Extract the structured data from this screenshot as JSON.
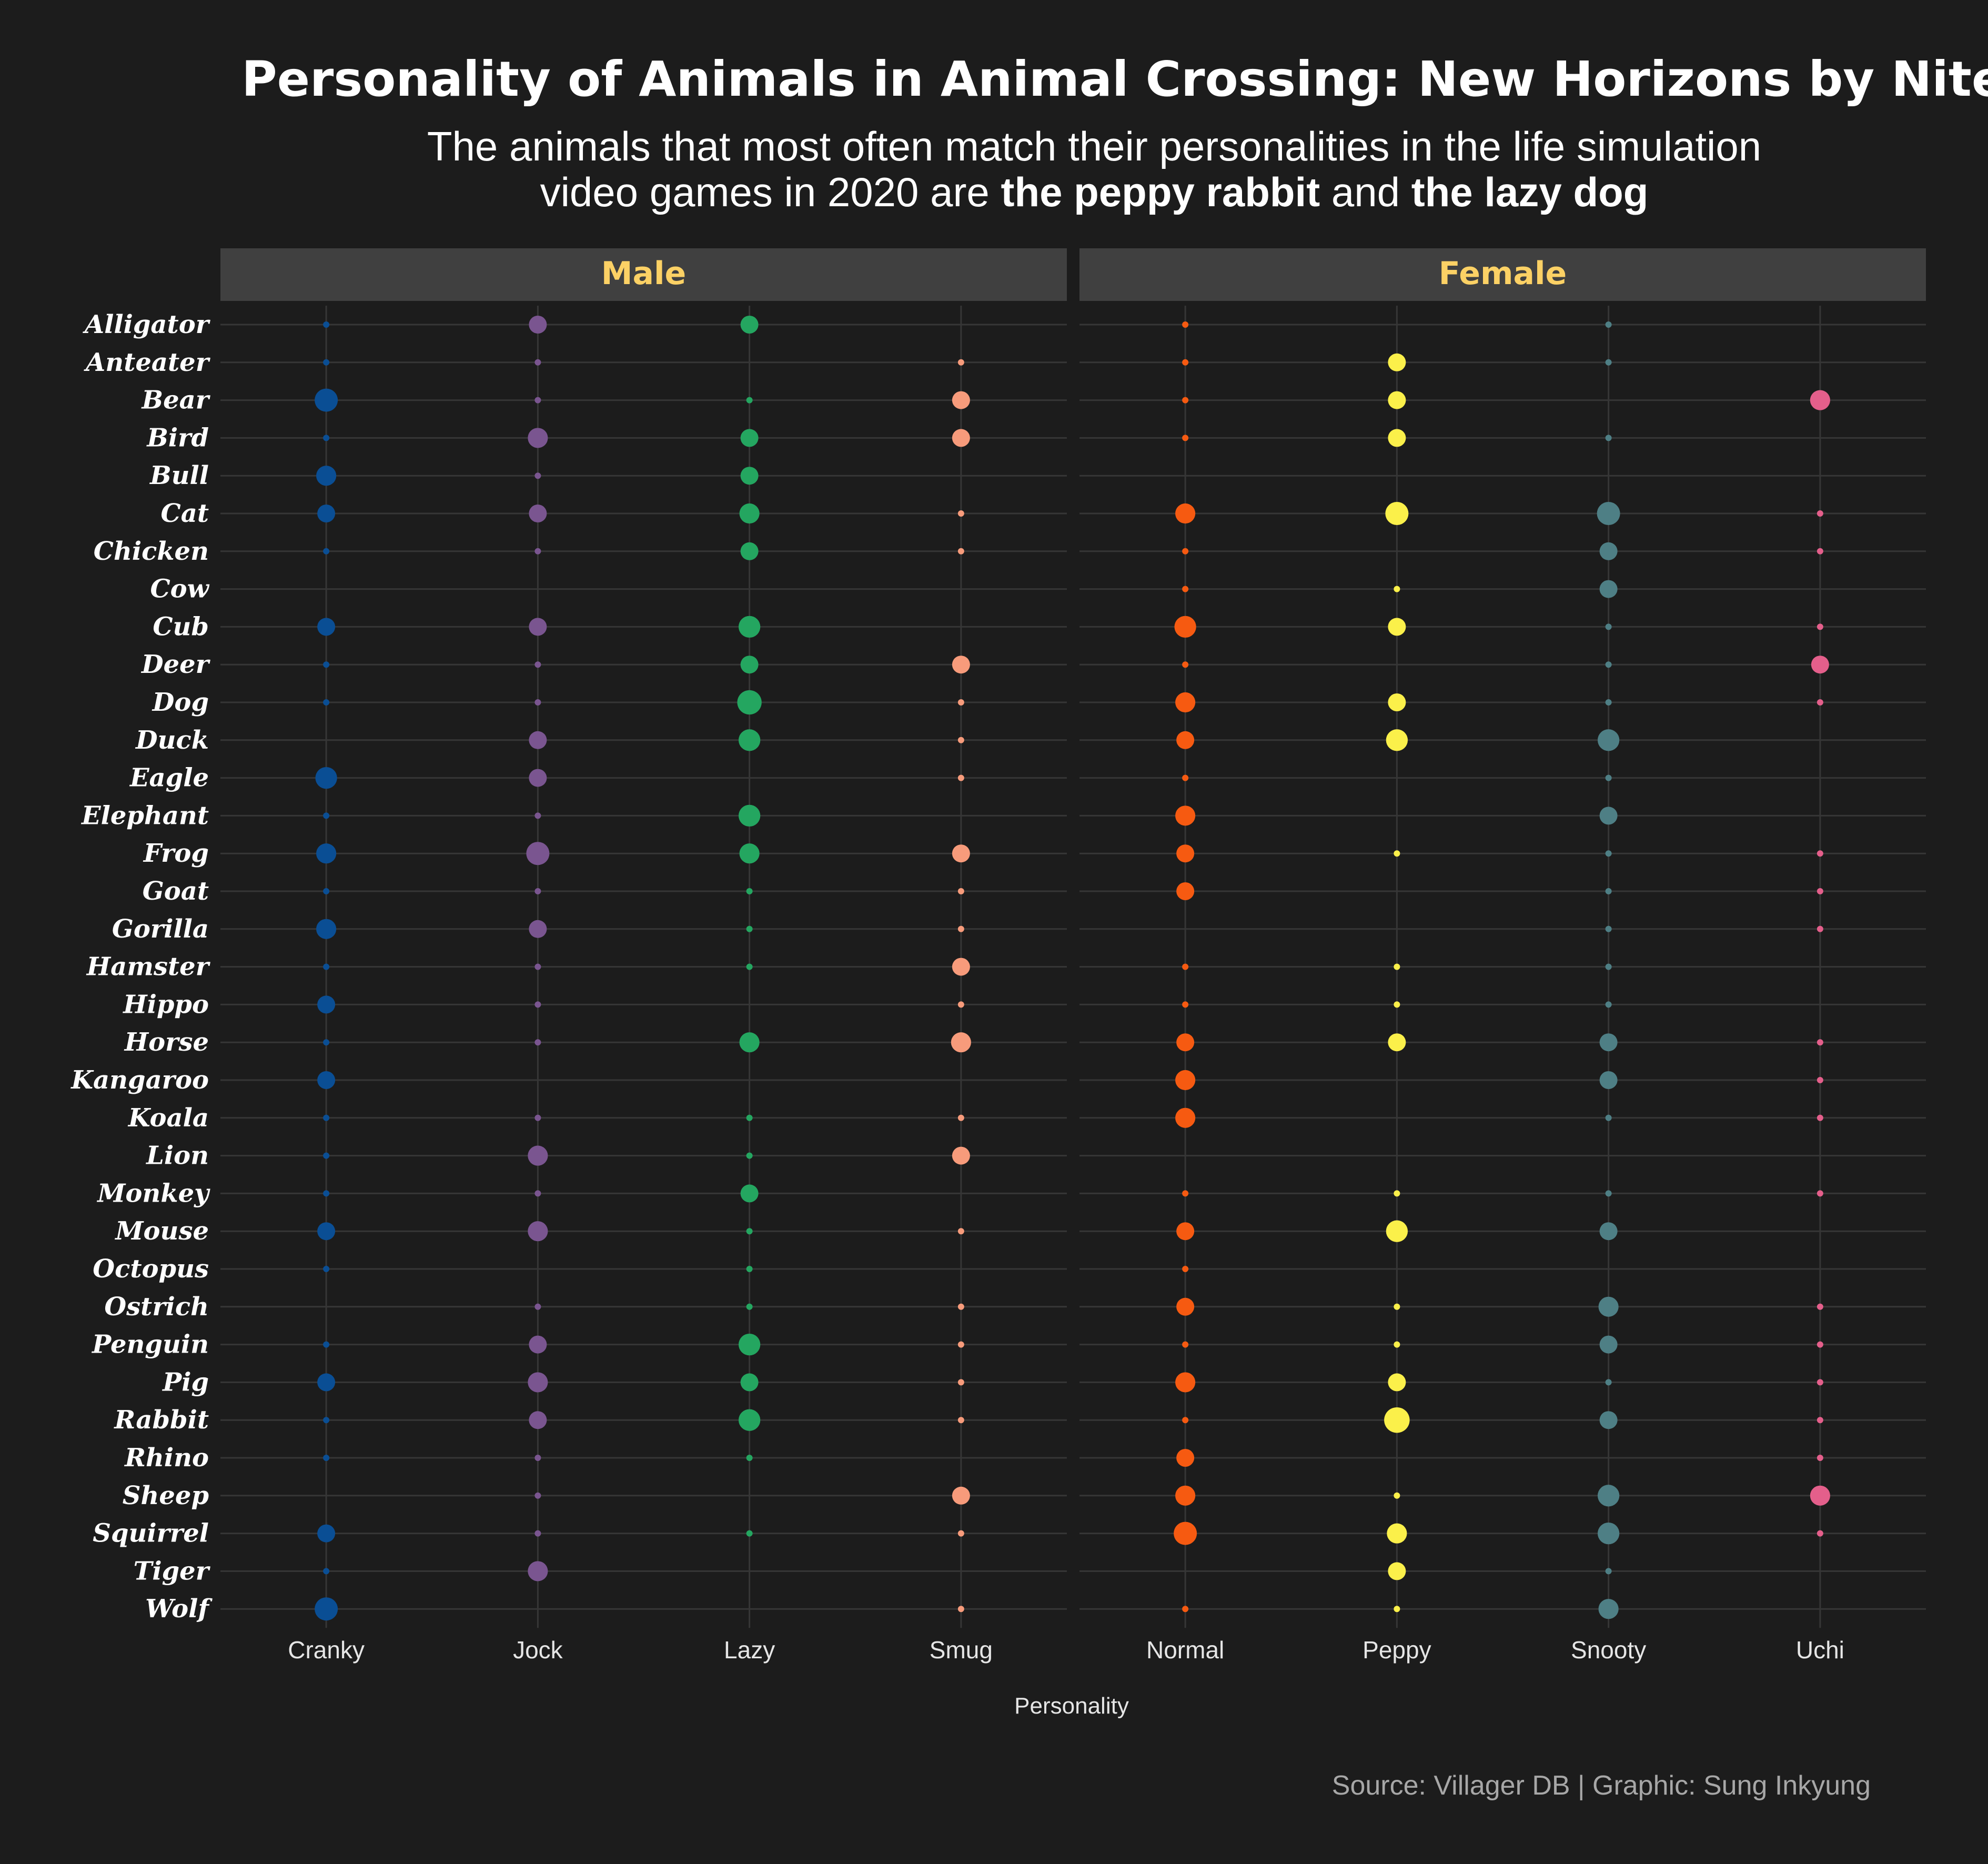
{
  "chart_data": {
    "type": "scatter",
    "title": "Personality of Animals in Animal Crossing: New Horizons by Nitendo",
    "subtitle_line1": "The animals that most often match their personalities in the life simulation",
    "subtitle_line2": [
      "video games in 2020 are ",
      "the peppy rabbit",
      " and ",
      "the lazy dog"
    ],
    "xlabel": "Personality",
    "caption": "Source: Villager DB | Graphic: Sung Inkyung",
    "grid": true,
    "legend": "none",
    "size_encodes": "count",
    "species": [
      "Alligator",
      "Anteater",
      "Bear",
      "Bird",
      "Bull",
      "Cat",
      "Chicken",
      "Cow",
      "Cub",
      "Deer",
      "Dog",
      "Duck",
      "Eagle",
      "Elephant",
      "Frog",
      "Goat",
      "Gorilla",
      "Hamster",
      "Hippo",
      "Horse",
      "Kangaroo",
      "Koala",
      "Lion",
      "Monkey",
      "Mouse",
      "Octopus",
      "Ostrich",
      "Penguin",
      "Pig",
      "Rabbit",
      "Rhino",
      "Sheep",
      "Squirrel",
      "Tiger",
      "Wolf"
    ],
    "panels": [
      {
        "name": "Male",
        "personalities": [
          "Cranky",
          "Jock",
          "Lazy",
          "Smug"
        ],
        "colors": {
          "Cranky": "#0a4e94",
          "Jock": "#7a5590",
          "Lazy": "#24a660",
          "Smug": "#f79b7b"
        },
        "counts": {
          "Cranky": [
            1,
            1,
            5,
            1,
            3,
            2,
            1,
            0,
            2,
            1,
            1,
            0,
            4,
            1,
            3,
            1,
            3,
            1,
            2,
            1,
            2,
            1,
            1,
            1,
            2,
            1,
            0,
            1,
            2,
            1,
            1,
            0,
            2,
            1,
            5
          ],
          "Jock": [
            2,
            1,
            1,
            3,
            1,
            2,
            1,
            0,
            2,
            1,
            1,
            2,
            2,
            1,
            5,
            1,
            2,
            1,
            1,
            1,
            0,
            1,
            3,
            1,
            3,
            0,
            1,
            2,
            3,
            2,
            1,
            1,
            1,
            3,
            0
          ],
          "Lazy": [
            2,
            0,
            1,
            2,
            2,
            3,
            2,
            0,
            4,
            2,
            6,
            4,
            0,
            4,
            3,
            1,
            1,
            1,
            0,
            3,
            0,
            1,
            1,
            2,
            1,
            1,
            1,
            4,
            2,
            4,
            1,
            0,
            1,
            0,
            0
          ],
          "Smug": [
            0,
            1,
            2,
            2,
            0,
            1,
            1,
            0,
            0,
            2,
            1,
            1,
            1,
            0,
            2,
            1,
            1,
            2,
            1,
            3,
            0,
            1,
            2,
            0,
            1,
            0,
            1,
            1,
            1,
            1,
            0,
            2,
            1,
            0,
            1
          ]
        }
      },
      {
        "name": "Female",
        "personalities": [
          "Normal",
          "Peppy",
          "Snooty",
          "Uchi"
        ],
        "colors": {
          "Normal": "#f65a11",
          "Peppy": "#fbf04a",
          "Snooty": "#4e7f85",
          "Uchi": "#e45f8b"
        },
        "counts": {
          "Normal": [
            1,
            1,
            1,
            1,
            0,
            3,
            1,
            1,
            4,
            1,
            3,
            2,
            1,
            3,
            2,
            2,
            0,
            1,
            1,
            2,
            3,
            3,
            0,
            1,
            2,
            1,
            2,
            1,
            3,
            1,
            2,
            3,
            5,
            0,
            1
          ],
          "Peppy": [
            0,
            2,
            2,
            2,
            0,
            5,
            0,
            1,
            2,
            0,
            2,
            4,
            0,
            0,
            1,
            0,
            0,
            1,
            1,
            2,
            0,
            0,
            0,
            1,
            4,
            0,
            1,
            1,
            2,
            7,
            0,
            1,
            3,
            2,
            1
          ],
          "Snooty": [
            1,
            1,
            0,
            1,
            0,
            5,
            2,
            2,
            1,
            1,
            1,
            4,
            1,
            2,
            1,
            1,
            1,
            1,
            1,
            2,
            2,
            1,
            0,
            1,
            2,
            0,
            3,
            2,
            1,
            2,
            0,
            4,
            4,
            1,
            3
          ],
          "Uchi": [
            0,
            0,
            3,
            0,
            0,
            1,
            1,
            0,
            1,
            2,
            1,
            0,
            0,
            0,
            1,
            1,
            1,
            0,
            0,
            1,
            1,
            1,
            0,
            1,
            0,
            0,
            1,
            1,
            1,
            1,
            1,
            3,
            1,
            0,
            0
          ]
        }
      }
    ]
  },
  "colors": {
    "background": "#1c1c1c",
    "strip": "#404040",
    "strip_text": "#fcd165",
    "text": "#ffffff",
    "tick_text": "#e6e6e6",
    "caption_text": "#a7a7a7",
    "grid": "#363636"
  }
}
